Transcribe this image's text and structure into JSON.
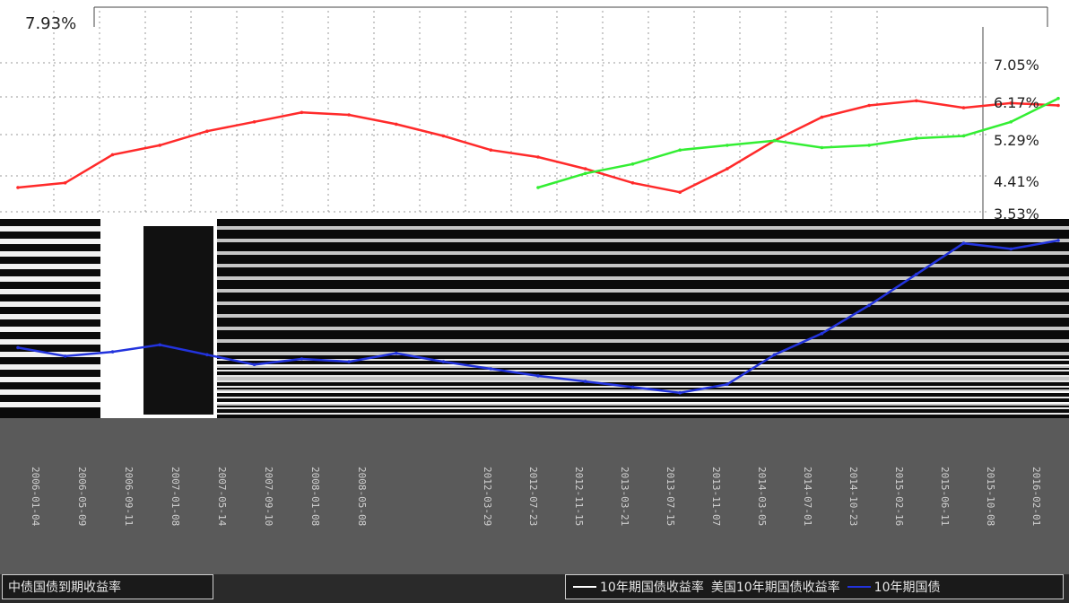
{
  "chart_data": {
    "type": "line",
    "legend": {
      "left_label": "中债国债到期收益率",
      "right_items": [
        {
          "label": "10年期国债收益率",
          "color": "#ffffff"
        },
        {
          "label": "美国10年期国债收益率",
          "color": "#ffffff"
        },
        {
          "label": "10年期国债",
          "color": "#2233dd"
        }
      ]
    },
    "y_tick_labels": {
      "left_top": "7.93%",
      "right": [
        "7.05%",
        "6.17%",
        "5.29%",
        "4.41%",
        "3.53%"
      ]
    },
    "date_labels": [
      "2006-01-04",
      "2006-05-09",
      "2006-09-11",
      "2007-01-08",
      "2007-05-14",
      "2007-09-10",
      "2008-01-08",
      "2008-05-08",
      "2012-03-29",
      "2012-07-23",
      "2012-11-15",
      "2013-03-21",
      "2013-07-15",
      "2013-11-07",
      "2014-03-05",
      "2014-07-01",
      "2014-10-23",
      "2015-02-16",
      "2015-06-11",
      "2015-10-08",
      "2016-02-01"
    ],
    "series": [
      {
        "name": "10年期国债",
        "color": "#2233dd",
        "values": [
          3.1,
          3.04,
          3.07,
          3.12,
          3.05,
          2.98,
          3.02,
          3.0,
          3.06,
          3.0,
          2.95,
          2.9,
          2.86,
          2.82,
          2.78,
          2.84,
          3.05,
          3.2,
          3.4,
          3.62,
          3.84,
          3.8,
          3.86
        ]
      },
      {
        "name": "10年期国债收益率",
        "color": "#ff2a2a",
        "values": [
          4.2,
          4.3,
          4.9,
          5.1,
          5.4,
          5.6,
          5.8,
          5.75,
          5.55,
          5.3,
          5.0,
          4.85,
          4.6,
          4.3,
          4.1,
          4.6,
          5.2,
          5.7,
          5.95,
          6.05,
          5.9,
          6.0,
          5.95
        ]
      },
      {
        "name": "美国10年期国债收益率",
        "color": "#33ee33",
        "values": [
          null,
          null,
          null,
          null,
          null,
          null,
          null,
          null,
          null,
          null,
          null,
          4.2,
          4.5,
          4.7,
          5.0,
          5.1,
          5.2,
          5.05,
          5.1,
          5.25,
          5.3,
          5.6,
          6.1
        ]
      }
    ]
  }
}
